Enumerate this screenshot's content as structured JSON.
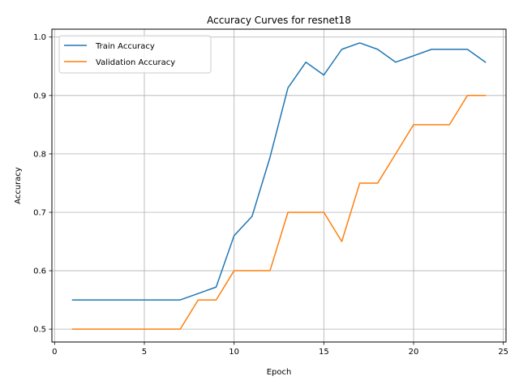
{
  "chart_data": {
    "type": "line",
    "title": "Accuracy Curves for resnet18",
    "xlabel": "Epoch",
    "ylabel": "Accuracy",
    "xlim": [
      -0.15,
      25.15
    ],
    "ylim": [
      0.478,
      1.0135
    ],
    "xticks": [
      0,
      5,
      10,
      15,
      20,
      25
    ],
    "yticks": [
      0.5,
      0.6,
      0.7,
      0.8,
      0.9,
      1.0
    ],
    "ytick_labels": [
      "0.5",
      "0.6",
      "0.7",
      "0.8",
      "0.9",
      "1.0"
    ],
    "grid": true,
    "legend_position": "upper-left",
    "x": [
      1,
      2,
      3,
      4,
      5,
      6,
      7,
      8,
      9,
      10,
      11,
      12,
      13,
      14,
      15,
      16,
      17,
      18,
      19,
      20,
      21,
      22,
      23,
      24
    ],
    "series": [
      {
        "name": "Train Accuracy",
        "color": "#1f77b4",
        "values": [
          0.55,
          0.55,
          0.55,
          0.55,
          0.55,
          0.55,
          0.55,
          0.561,
          0.572,
          0.66,
          0.693,
          0.794,
          0.913,
          0.957,
          0.935,
          0.979,
          0.99,
          0.979,
          0.957,
          0.968,
          0.979,
          0.979,
          0.979,
          0.957
        ]
      },
      {
        "name": "Validation Accuracy",
        "color": "#ff7f0e",
        "values": [
          0.5,
          0.5,
          0.5,
          0.5,
          0.5,
          0.5,
          0.5,
          0.55,
          0.55,
          0.6,
          0.6,
          0.6,
          0.7,
          0.7,
          0.7,
          0.65,
          0.75,
          0.75,
          0.8,
          0.85,
          0.85,
          0.85,
          0.9,
          0.9
        ]
      }
    ]
  }
}
